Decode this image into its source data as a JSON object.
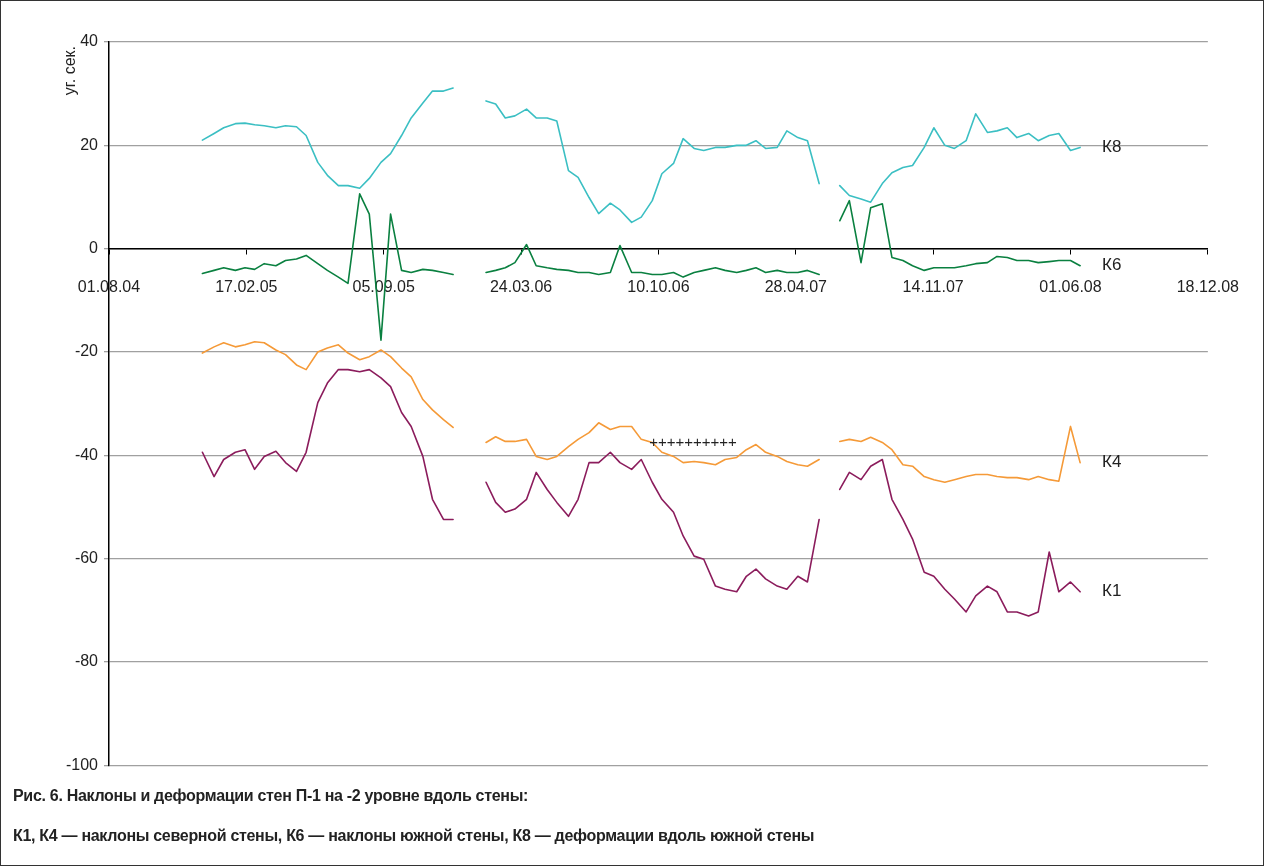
{
  "chart_data": {
    "type": "line",
    "title": "Рис. 6. Наклоны и деформации стен П-1 на -2 уровне вдоль стены:",
    "subtitle": "К1, К4 — наклоны северной стены, К6 — наклоны южной стены, К8 — деформации вдоль южной стены",
    "ylabel": "уг. сек.",
    "x": [
      "2004-12-15",
      "2005-01-01",
      "2005-01-15",
      "2005-02-01",
      "2005-02-15",
      "2005-03-01",
      "2005-03-15",
      "2005-04-01",
      "2005-04-15",
      "2005-05-01",
      "2005-05-15",
      "2005-06-01",
      "2005-06-15",
      "2005-07-01",
      "2005-07-15",
      "2005-08-01",
      "2005-08-15",
      "2005-09-01",
      "2005-09-15",
      "2005-10-01",
      "2005-10-15",
      "2005-11-01",
      "2005-11-15",
      "2005-12-01",
      "2005-12-15",
      "2006-01-01",
      "2006-01-15",
      "2006-02-01",
      "2006-02-15",
      "2006-03-01",
      "2006-03-15",
      "2006-04-01",
      "2006-04-15",
      "2006-05-01",
      "2006-05-15",
      "2006-06-01",
      "2006-06-15",
      "2006-07-01",
      "2006-07-15",
      "2006-08-01",
      "2006-08-15",
      "2006-09-01",
      "2006-09-15",
      "2006-10-01",
      "2006-10-15",
      "2006-11-01",
      "2006-11-15",
      "2006-12-01",
      "2006-12-15",
      "2007-01-01",
      "2007-01-15",
      "2007-02-01",
      "2007-02-15",
      "2007-03-01",
      "2007-03-15",
      "2007-04-01",
      "2007-04-15",
      "2007-05-01",
      "2007-05-15",
      "2007-06-01",
      "2007-06-15",
      "2007-07-01",
      "2007-07-15",
      "2007-08-01",
      "2007-08-15",
      "2007-09-01",
      "2007-09-15",
      "2007-10-01",
      "2007-10-15",
      "2007-11-01",
      "2007-11-15",
      "2007-12-01",
      "2007-12-15",
      "2008-01-01",
      "2008-01-15",
      "2008-02-01",
      "2008-02-15",
      "2008-03-01",
      "2008-03-15",
      "2008-04-01",
      "2008-04-15",
      "2008-05-01",
      "2008-05-15",
      "2008-06-01",
      "2008-06-15"
    ],
    "series": [
      {
        "name": "К8",
        "color": "#3bbfc3",
        "values": [
          21,
          22.3,
          23.4,
          24.2,
          24.3,
          24,
          23.8,
          23.4,
          23.8,
          23.6,
          21.9,
          16.7,
          14.2,
          12.2,
          12.2,
          11.7,
          13.6,
          16.7,
          18.4,
          21.9,
          25.3,
          28.2,
          30.5,
          30.5,
          31.1,
          null,
          null,
          28.6,
          28,
          25.3,
          25.7,
          27,
          25.3,
          25.3,
          24.7,
          15.1,
          13.8,
          9.9,
          6.8,
          8.8,
          7.5,
          5.1,
          6.1,
          9.3,
          14.5,
          16.5,
          21.3,
          19.4,
          19,
          19.6,
          19.6,
          20,
          20,
          20.9,
          19.4,
          19.6,
          22.8,
          21.5,
          20.9,
          12.6,
          null,
          12.2,
          10.3,
          9.6,
          9,
          12.6,
          14.7,
          15.7,
          16.1,
          19.6,
          23.4,
          20,
          19.4,
          20.9,
          26.1,
          22.5,
          22.8,
          23.4,
          21.5,
          22.3,
          20.9,
          21.9,
          22.3,
          19,
          19.6
        ]
      },
      {
        "name": "К6",
        "color": "#0a8040",
        "values": [
          -4.8,
          -4.2,
          -3.7,
          -4.2,
          -3.7,
          -4,
          -2.9,
          -3.3,
          -2.3,
          -2,
          -1.3,
          -2.9,
          -4.2,
          -5.5,
          -6.7,
          10.6,
          6.7,
          -17.7,
          6.7,
          -4.2,
          -4.6,
          -4,
          -4.2,
          -4.6,
          -5,
          null,
          null,
          -4.6,
          -4.2,
          -3.7,
          -2.7,
          0.8,
          -3.3,
          -3.7,
          -4,
          -4.2,
          -4.6,
          -4.6,
          -5,
          -4.6,
          0.6,
          -4.6,
          -4.6,
          -5,
          -5,
          -4.6,
          -5.5,
          -4.6,
          -4.2,
          -3.7,
          -4.2,
          -4.6,
          -4.2,
          -3.7,
          -4.6,
          -4.2,
          -4.6,
          -4.6,
          -4.2,
          -5,
          null,
          5.4,
          9.3,
          -2.7,
          7.9,
          8.7,
          -1.7,
          -2.3,
          -3.3,
          -4.2,
          -3.7,
          -3.7,
          -3.7,
          -3.3,
          -2.9,
          -2.7,
          -1.5,
          -1.7,
          -2.3,
          -2.3,
          -2.7,
          -2.5,
          -2.3,
          -2.3,
          -3.3
        ]
      },
      {
        "name": "К4",
        "color": "#f59a38",
        "values": [
          -20.2,
          -19,
          -18.2,
          -19,
          -18.6,
          -18,
          -18.2,
          -19.6,
          -20.5,
          -22.5,
          -23.4,
          -20,
          -19.2,
          -18.6,
          -20.2,
          -21.5,
          -20.9,
          -19.6,
          -20.9,
          -23.1,
          -24.8,
          -29.2,
          -31.2,
          -33.1,
          -34.6,
          null,
          null,
          -37.5,
          -36.4,
          -37.3,
          -37.3,
          -36.9,
          -40.2,
          -40.8,
          -40.2,
          -38.3,
          -36.9,
          -35.6,
          -33.7,
          -35,
          -34.4,
          -34.4,
          -36.9,
          -37.5,
          -39.4,
          -40.2,
          -41.4,
          -41.2,
          -41.4,
          -41.8,
          -40.8,
          -40.4,
          -38.9,
          -37.9,
          -39.4,
          -40.2,
          -41.2,
          -41.8,
          -42.1,
          -40.8,
          null,
          -37.3,
          -36.9,
          -37.3,
          -36.5,
          -37.5,
          -38.9,
          -41.8,
          -42.1,
          -44.1,
          -44.7,
          -45.2,
          -44.7,
          -44.1,
          -43.7,
          -43.7,
          -44.1,
          -44.3,
          -44.3,
          -44.7,
          -44.1,
          -44.7,
          -45,
          -34.4,
          -41.4
        ]
      },
      {
        "name": "К1",
        "color": "#8b1c5c",
        "values": [
          -39.4,
          -44.1,
          -40.8,
          -39.4,
          -38.9,
          -42.7,
          -40.2,
          -39.2,
          -41.4,
          -43.1,
          -39.4,
          -29.8,
          -26,
          -23.4,
          -23.4,
          -23.8,
          -23.4,
          -25,
          -26.7,
          -31.7,
          -34.4,
          -40.2,
          -48.5,
          -52.4,
          -52.4,
          null,
          null,
          -45.2,
          -49.1,
          -51,
          -50.4,
          -48.5,
          -43.3,
          -46.6,
          -49.1,
          -51.8,
          -48.5,
          -41.4,
          -41.4,
          -39.4,
          -41.4,
          -42.7,
          -40.8,
          -45.2,
          -48.5,
          -51,
          -55.6,
          -59.5,
          -60.1,
          -65.3,
          -65.9,
          -66.4,
          -63.4,
          -62,
          -63.9,
          -65.3,
          -65.9,
          -63.4,
          -64.5,
          -52.4,
          null,
          -46.6,
          -43.3,
          -44.7,
          -42.1,
          -40.8,
          -48.5,
          -52.4,
          -56.2,
          -62.6,
          -63.4,
          -65.9,
          -67.8,
          -70.3,
          -67.2,
          -65.3,
          -66.4,
          -70.3,
          -70.3,
          -71.1,
          -70.3,
          -58.7,
          -66.4,
          -64.5,
          -66.4
        ]
      }
    ],
    "xlim": [
      "2004-08-01",
      "2008-12-18"
    ],
    "xticks": [
      {
        "value": "2004-08-01",
        "label": "01.08.04"
      },
      {
        "value": "2005-02-17",
        "label": "17.02.05"
      },
      {
        "value": "2005-09-05",
        "label": "05.09.05"
      },
      {
        "value": "2006-03-24",
        "label": "24.03.06"
      },
      {
        "value": "2006-10-10",
        "label": "10.10.06"
      },
      {
        "value": "2007-04-28",
        "label": "28.04.07"
      },
      {
        "value": "2007-11-14",
        "label": "14.11.07"
      },
      {
        "value": "2008-06-01",
        "label": "01.06.08"
      },
      {
        "value": "2008-12-18",
        "label": "18.12.08"
      }
    ],
    "ylim": [
      -100,
      40
    ],
    "yticks": [
      -100,
      -80,
      -60,
      -40,
      -20,
      0,
      20,
      40
    ],
    "annotations": [
      "++++++++++"
    ],
    "grid": "y",
    "legend": false,
    "marker": "none",
    "line_style": "solid"
  }
}
